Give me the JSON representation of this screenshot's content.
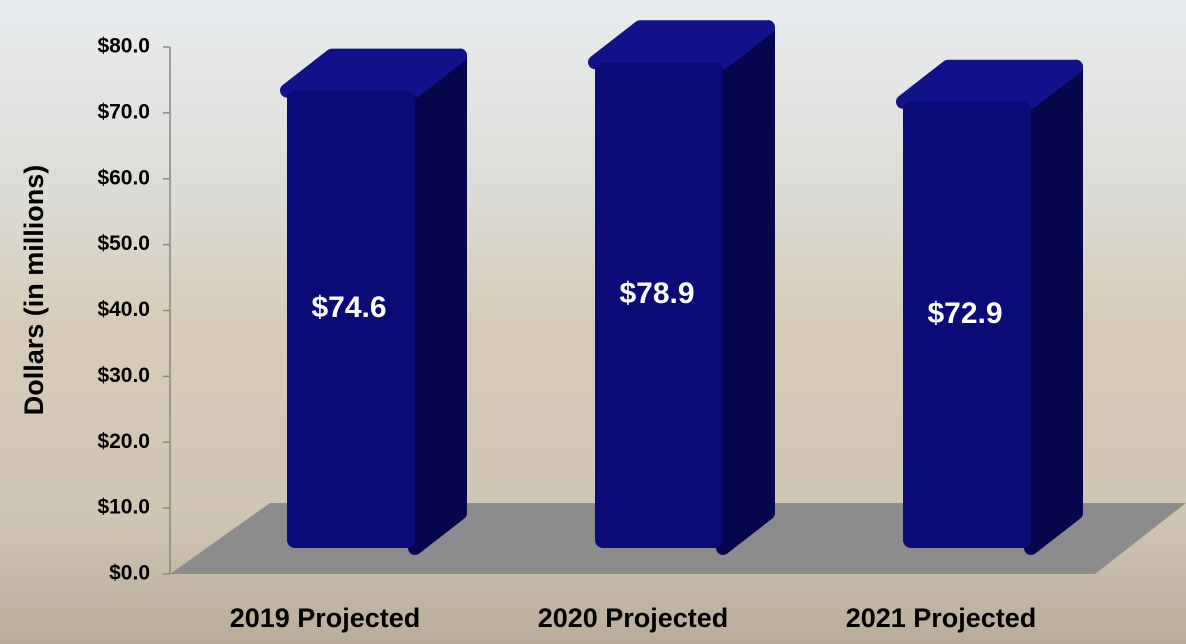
{
  "chart_data": {
    "type": "bar3d",
    "y_label": "Dollars (in millions)",
    "categories": [
      "2019 Projected",
      "2020 Projected",
      "2021 Projected"
    ],
    "values": [
      74.6,
      78.9,
      72.9
    ],
    "value_labels": [
      "$74.6",
      "$78.9",
      "$72.9"
    ],
    "color": "#0b0b78",
    "ylim": [
      0,
      80
    ],
    "yticks": [
      {
        "value": 0,
        "label": "$0.0"
      },
      {
        "value": 10,
        "label": "$10.0"
      },
      {
        "value": 20,
        "label": "$20.0"
      },
      {
        "value": 30,
        "label": "$30.0"
      },
      {
        "value": 40,
        "label": "$40.0"
      },
      {
        "value": 50,
        "label": "$50.0"
      },
      {
        "value": 60,
        "label": "$60.0"
      },
      {
        "value": 70,
        "label": "$70.0"
      },
      {
        "value": 80,
        "label": "$80.0"
      }
    ]
  }
}
